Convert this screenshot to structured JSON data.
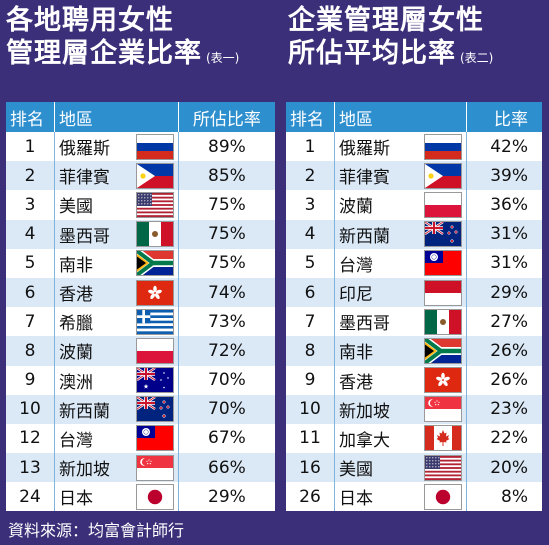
{
  "titles": {
    "left_line1": "各地聘用女性",
    "left_line2": "管理層企業比率",
    "left_sub": "(表一)",
    "right_line1": "企業管理層女性",
    "right_line2": "所佔平均比率",
    "right_sub": "(表二)"
  },
  "source": "資料來源：均富會計師行",
  "chart_data": [
    {
      "type": "table",
      "title": "各地聘用女性管理層企業比率",
      "columns": [
        "排名",
        "地區",
        "所佔比率"
      ],
      "rows": [
        {
          "rank": "1",
          "region": "俄羅斯",
          "flag": "russia",
          "value": "89%"
        },
        {
          "rank": "2",
          "region": "菲律賓",
          "flag": "philippines",
          "value": "85%"
        },
        {
          "rank": "3",
          "region": "美國",
          "flag": "usa",
          "value": "75%"
        },
        {
          "rank": "4",
          "region": "墨西哥",
          "flag": "mexico",
          "value": "75%"
        },
        {
          "rank": "5",
          "region": "南非",
          "flag": "south-africa",
          "value": "75%"
        },
        {
          "rank": "6",
          "region": "香港",
          "flag": "hong-kong",
          "value": "74%"
        },
        {
          "rank": "7",
          "region": "希臘",
          "flag": "greece",
          "value": "73%"
        },
        {
          "rank": "8",
          "region": "波蘭",
          "flag": "poland",
          "value": "72%"
        },
        {
          "rank": "9",
          "region": "澳洲",
          "flag": "australia",
          "value": "70%"
        },
        {
          "rank": "10",
          "region": "新西蘭",
          "flag": "new-zealand",
          "value": "70%"
        },
        {
          "rank": "12",
          "region": "台灣",
          "flag": "taiwan",
          "value": "67%"
        },
        {
          "rank": "13",
          "region": "新加坡",
          "flag": "singapore",
          "value": "66%"
        },
        {
          "rank": "24",
          "region": "日本",
          "flag": "japan",
          "value": "29%"
        }
      ]
    },
    {
      "type": "table",
      "title": "企業管理層女性所佔平均比率",
      "columns": [
        "排名",
        "地區",
        "比率"
      ],
      "rows": [
        {
          "rank": "1",
          "region": "俄羅斯",
          "flag": "russia",
          "value": "42%"
        },
        {
          "rank": "2",
          "region": "菲律賓",
          "flag": "philippines",
          "value": "39%"
        },
        {
          "rank": "3",
          "region": "波蘭",
          "flag": "poland",
          "value": "36%"
        },
        {
          "rank": "4",
          "region": "新西蘭",
          "flag": "new-zealand",
          "value": "31%"
        },
        {
          "rank": "5",
          "region": "台灣",
          "flag": "taiwan",
          "value": "31%"
        },
        {
          "rank": "6",
          "region": "印尼",
          "flag": "indonesia",
          "value": "29%"
        },
        {
          "rank": "7",
          "region": "墨西哥",
          "flag": "mexico",
          "value": "27%"
        },
        {
          "rank": "8",
          "region": "南非",
          "flag": "south-africa",
          "value": "26%"
        },
        {
          "rank": "9",
          "region": "香港",
          "flag": "hong-kong",
          "value": "26%"
        },
        {
          "rank": "10",
          "region": "新加坡",
          "flag": "singapore",
          "value": "23%"
        },
        {
          "rank": "11",
          "region": "加拿大",
          "flag": "canada",
          "value": "22%"
        },
        {
          "rank": "16",
          "region": "美國",
          "flag": "usa",
          "value": "20%"
        },
        {
          "rank": "26",
          "region": "日本",
          "flag": "japan",
          "value": "8%"
        }
      ]
    }
  ],
  "colors": {
    "background": "#3a2f78",
    "header": "#2e8fcf",
    "row_alt": "#dbe9f7"
  }
}
